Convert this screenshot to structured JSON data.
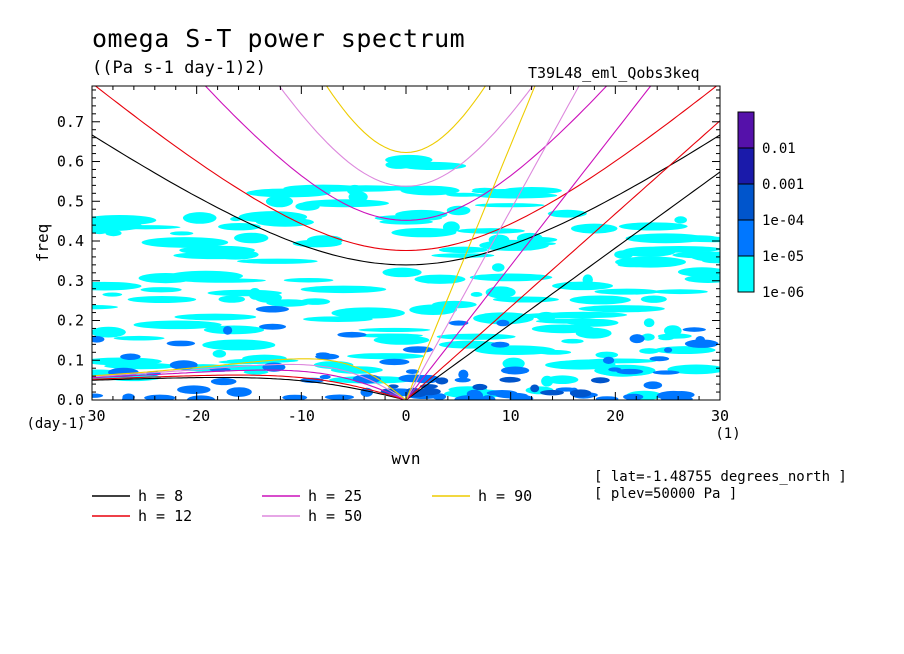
{
  "page": {
    "title": "omega S-T power spectrum",
    "subtitle": "((Pa s-1 day-1)2)",
    "run_id": "T39L48_eml_Qobs3keq",
    "info": [
      "[ lat=-1.48755 degrees_north ]",
      "[ plev=50000 Pa ]"
    ]
  },
  "chart_data": {
    "type": "heatmap",
    "title": "omega S-T power spectrum",
    "xlabel": "wvn",
    "ylabel": "freq",
    "x_units": "(1)",
    "y_units": "(day-1)",
    "xlim": [
      -30,
      30
    ],
    "ylim": [
      0,
      0.79
    ],
    "x_ticks": [
      -30,
      -20,
      -10,
      0,
      10,
      20,
      30
    ],
    "x_tick_labels": [
      "-30",
      "-20",
      "-10",
      "0",
      "10",
      "20",
      "30"
    ],
    "y_ticks": [
      0,
      0.1,
      0.2,
      0.3,
      0.4,
      0.5,
      0.6,
      0.7
    ],
    "y_tick_labels": [
      "0.0",
      "0.1",
      "0.2",
      "0.3",
      "0.4",
      "0.5",
      "0.6",
      "0.7"
    ],
    "color_levels": [
      {
        "label": "1e-06",
        "color": "#00ffff"
      },
      {
        "label": "1e-05",
        "color": "#0077ff"
      },
      {
        "label": "1e-04",
        "color": "#0055cc"
      },
      {
        "label": "0.001",
        "color": "#1a1aaa"
      },
      {
        "label": "0.01",
        "color": "#5511aa"
      }
    ],
    "dispersion_curves": [
      {
        "label": "h =  8",
        "h": 8,
        "color": "#000000"
      },
      {
        "label": "h = 12",
        "h": 12,
        "color": "#e8000b"
      },
      {
        "label": "h = 25",
        "h": 25,
        "color": "#cc11bb"
      },
      {
        "label": "h = 50",
        "h": 50,
        "color": "#dd88dd"
      },
      {
        "label": "h = 90",
        "h": 90,
        "color": "#eecc00"
      }
    ]
  }
}
